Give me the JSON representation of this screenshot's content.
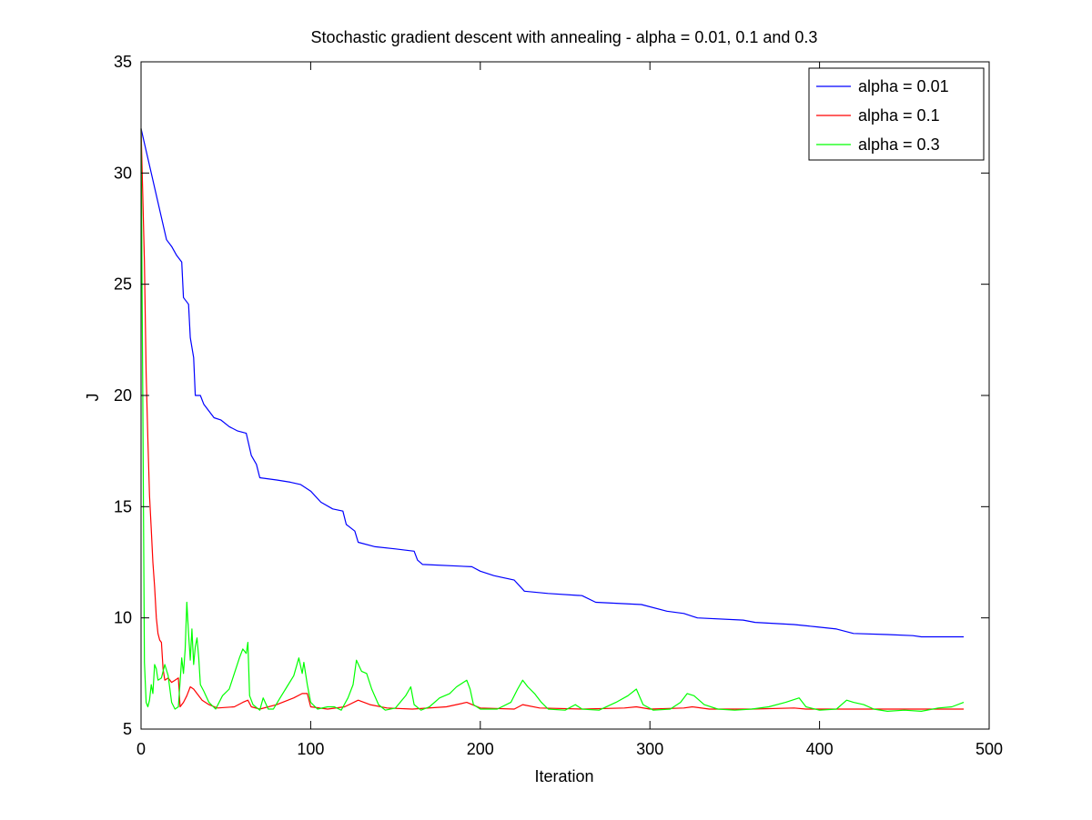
{
  "chart_data": {
    "type": "line",
    "title": "Stochastic gradient descent with annealing - alpha = 0.01, 0.1 and 0.3",
    "xlabel": "Iteration",
    "ylabel": "J",
    "xlim": [
      0,
      500
    ],
    "ylim": [
      5,
      35
    ],
    "xticks": [
      0,
      100,
      200,
      300,
      400,
      500
    ],
    "yticks": [
      5,
      10,
      15,
      20,
      25,
      30,
      35
    ],
    "grid": false,
    "legend_position": "top-right",
    "series": [
      {
        "name": "alpha = 0.01",
        "color": "#0000ff",
        "points": [
          [
            0,
            32
          ],
          [
            3,
            31
          ],
          [
            6,
            30
          ],
          [
            9,
            29
          ],
          [
            12,
            28
          ],
          [
            15,
            27
          ],
          [
            18,
            26.7
          ],
          [
            21,
            26.3
          ],
          [
            24,
            26
          ],
          [
            25,
            24.4
          ],
          [
            28,
            24.1
          ],
          [
            29,
            22.6
          ],
          [
            31,
            21.7
          ],
          [
            32,
            20
          ],
          [
            35,
            20
          ],
          [
            37,
            19.6
          ],
          [
            40,
            19.3
          ],
          [
            43,
            19
          ],
          [
            47,
            18.9
          ],
          [
            52,
            18.6
          ],
          [
            57,
            18.4
          ],
          [
            62,
            18.3
          ],
          [
            65,
            17.3
          ],
          [
            68,
            16.9
          ],
          [
            70,
            16.3
          ],
          [
            80,
            16.2
          ],
          [
            88,
            16.1
          ],
          [
            94,
            16
          ],
          [
            100,
            15.7
          ],
          [
            106,
            15.2
          ],
          [
            113,
            14.9
          ],
          [
            119,
            14.8
          ],
          [
            121,
            14.2
          ],
          [
            126,
            13.9
          ],
          [
            128,
            13.4
          ],
          [
            138,
            13.2
          ],
          [
            150,
            13.1
          ],
          [
            161,
            13
          ],
          [
            163,
            12.6
          ],
          [
            166,
            12.4
          ],
          [
            195,
            12.3
          ],
          [
            200,
            12.1
          ],
          [
            208,
            11.9
          ],
          [
            220,
            11.7
          ],
          [
            226,
            11.2
          ],
          [
            240,
            11.1
          ],
          [
            260,
            11
          ],
          [
            268,
            10.7
          ],
          [
            295,
            10.6
          ],
          [
            310,
            10.3
          ],
          [
            320,
            10.2
          ],
          [
            328,
            10
          ],
          [
            355,
            9.9
          ],
          [
            362,
            9.8
          ],
          [
            385,
            9.7
          ],
          [
            398,
            9.6
          ],
          [
            410,
            9.5
          ],
          [
            420,
            9.3
          ],
          [
            440,
            9.25
          ],
          [
            455,
            9.2
          ],
          [
            460,
            9.15
          ],
          [
            485,
            9.15
          ]
        ]
      },
      {
        "name": "alpha = 0.1",
        "color": "#ff0000",
        "points": [
          [
            0,
            32
          ],
          [
            1,
            29
          ],
          [
            2,
            26
          ],
          [
            3,
            21
          ],
          [
            4,
            18
          ],
          [
            5,
            15.5
          ],
          [
            6,
            14
          ],
          [
            7,
            12.5
          ],
          [
            8,
            11.4
          ],
          [
            9,
            10
          ],
          [
            10,
            9.3
          ],
          [
            11,
            9
          ],
          [
            12,
            8.9
          ],
          [
            13,
            7.7
          ],
          [
            14,
            7.2
          ],
          [
            16,
            7.3
          ],
          [
            18,
            7.1
          ],
          [
            20,
            7.2
          ],
          [
            22,
            7.3
          ],
          [
            23,
            6
          ],
          [
            25,
            6.2
          ],
          [
            27,
            6.5
          ],
          [
            29,
            6.9
          ],
          [
            31,
            6.8
          ],
          [
            33,
            6.6
          ],
          [
            36,
            6.3
          ],
          [
            40,
            6.1
          ],
          [
            45,
            5.95
          ],
          [
            55,
            6
          ],
          [
            60,
            6.2
          ],
          [
            63,
            6.3
          ],
          [
            65,
            6
          ],
          [
            70,
            5.9
          ],
          [
            80,
            6.1
          ],
          [
            90,
            6.4
          ],
          [
            95,
            6.6
          ],
          [
            98,
            6.6
          ],
          [
            100,
            6
          ],
          [
            110,
            5.9
          ],
          [
            120,
            6
          ],
          [
            128,
            6.3
          ],
          [
            135,
            6.1
          ],
          [
            145,
            5.95
          ],
          [
            160,
            5.9
          ],
          [
            180,
            6
          ],
          [
            192,
            6.2
          ],
          [
            200,
            5.95
          ],
          [
            220,
            5.9
          ],
          [
            225,
            6.1
          ],
          [
            235,
            5.95
          ],
          [
            260,
            5.9
          ],
          [
            285,
            5.95
          ],
          [
            292,
            6
          ],
          [
            300,
            5.9
          ],
          [
            320,
            5.95
          ],
          [
            325,
            6
          ],
          [
            335,
            5.9
          ],
          [
            360,
            5.9
          ],
          [
            385,
            5.95
          ],
          [
            392,
            5.9
          ],
          [
            420,
            5.9
          ],
          [
            450,
            5.9
          ],
          [
            485,
            5.9
          ]
        ]
      },
      {
        "name": "alpha = 0.3",
        "color": "#00ff00",
        "points": [
          [
            0,
            32
          ],
          [
            1,
            20
          ],
          [
            2,
            8
          ],
          [
            3,
            6.2
          ],
          [
            4,
            6
          ],
          [
            5,
            6.3
          ],
          [
            6,
            7
          ],
          [
            7,
            6.6
          ],
          [
            8,
            7.9
          ],
          [
            9,
            7.7
          ],
          [
            10,
            7.2
          ],
          [
            12,
            7.3
          ],
          [
            14,
            7.9
          ],
          [
            16,
            7.4
          ],
          [
            18,
            6.2
          ],
          [
            20,
            5.9
          ],
          [
            22,
            6
          ],
          [
            24,
            8.2
          ],
          [
            25,
            7.5
          ],
          [
            26,
            8.6
          ],
          [
            27,
            10.7
          ],
          [
            28,
            9.3
          ],
          [
            29,
            8.1
          ],
          [
            30,
            9.5
          ],
          [
            31,
            7.9
          ],
          [
            32,
            8.7
          ],
          [
            33,
            9.1
          ],
          [
            34,
            8.2
          ],
          [
            35,
            7
          ],
          [
            37,
            6.7
          ],
          [
            40,
            6.2
          ],
          [
            44,
            5.9
          ],
          [
            48,
            6.5
          ],
          [
            52,
            6.8
          ],
          [
            55,
            7.5
          ],
          [
            58,
            8.2
          ],
          [
            60,
            8.6
          ],
          [
            62,
            8.4
          ],
          [
            63,
            8.9
          ],
          [
            64,
            6.5
          ],
          [
            66,
            6.1
          ],
          [
            70,
            5.85
          ],
          [
            72,
            6.4
          ],
          [
            75,
            5.9
          ],
          [
            78,
            5.9
          ],
          [
            82,
            6.4
          ],
          [
            86,
            6.9
          ],
          [
            90,
            7.4
          ],
          [
            93,
            8.2
          ],
          [
            95,
            7.5
          ],
          [
            96,
            8
          ],
          [
            98,
            7
          ],
          [
            100,
            6.2
          ],
          [
            104,
            5.9
          ],
          [
            110,
            6
          ],
          [
            114,
            6
          ],
          [
            118,
            5.85
          ],
          [
            122,
            6.4
          ],
          [
            125,
            7
          ],
          [
            127,
            8.1
          ],
          [
            130,
            7.6
          ],
          [
            133,
            7.5
          ],
          [
            136,
            6.8
          ],
          [
            140,
            6.1
          ],
          [
            144,
            5.85
          ],
          [
            150,
            5.95
          ],
          [
            156,
            6.5
          ],
          [
            159,
            6.9
          ],
          [
            161,
            6.1
          ],
          [
            165,
            5.85
          ],
          [
            170,
            6
          ],
          [
            176,
            6.4
          ],
          [
            182,
            6.6
          ],
          [
            186,
            6.9
          ],
          [
            190,
            7.1
          ],
          [
            192,
            7.2
          ],
          [
            194,
            6.8
          ],
          [
            196,
            6.1
          ],
          [
            200,
            5.9
          ],
          [
            210,
            5.9
          ],
          [
            218,
            6.2
          ],
          [
            222,
            6.8
          ],
          [
            225,
            7.2
          ],
          [
            228,
            6.9
          ],
          [
            232,
            6.6
          ],
          [
            236,
            6.2
          ],
          [
            240,
            5.9
          ],
          [
            250,
            5.85
          ],
          [
            256,
            6.1
          ],
          [
            260,
            5.9
          ],
          [
            270,
            5.85
          ],
          [
            280,
            6.2
          ],
          [
            287,
            6.5
          ],
          [
            292,
            6.8
          ],
          [
            296,
            6.1
          ],
          [
            302,
            5.85
          ],
          [
            312,
            5.9
          ],
          [
            318,
            6.2
          ],
          [
            322,
            6.6
          ],
          [
            326,
            6.5
          ],
          [
            332,
            6.1
          ],
          [
            340,
            5.9
          ],
          [
            350,
            5.85
          ],
          [
            360,
            5.9
          ],
          [
            370,
            6
          ],
          [
            380,
            6.2
          ],
          [
            388,
            6.4
          ],
          [
            392,
            6
          ],
          [
            400,
            5.85
          ],
          [
            410,
            5.9
          ],
          [
            416,
            6.3
          ],
          [
            420,
            6.2
          ],
          [
            426,
            6.1
          ],
          [
            432,
            5.9
          ],
          [
            440,
            5.8
          ],
          [
            450,
            5.85
          ],
          [
            460,
            5.8
          ],
          [
            470,
            5.95
          ],
          [
            478,
            6
          ],
          [
            485,
            6.2
          ]
        ]
      }
    ]
  }
}
